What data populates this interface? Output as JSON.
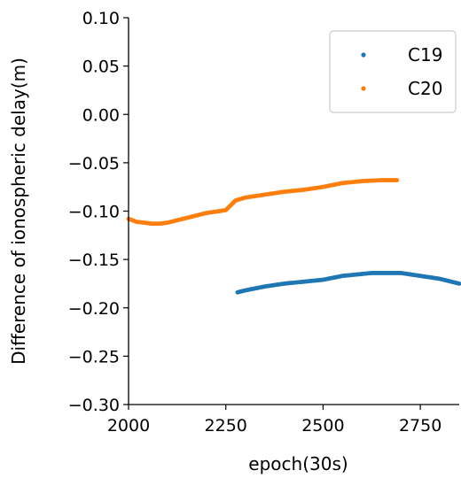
{
  "chart_data": {
    "type": "scatter",
    "xlabel": "epoch(30s)",
    "ylabel": "Difference of ionospheric delay(m)",
    "xlim": [
      2000,
      2850
    ],
    "ylim": [
      -0.3,
      0.1
    ],
    "xticks": [
      2000,
      2250,
      2500,
      2750
    ],
    "xtick_labels": [
      "2000",
      "2250",
      "2500",
      "2750"
    ],
    "yticks": [
      0.1,
      0.05,
      0.0,
      -0.05,
      -0.1,
      -0.15,
      -0.2,
      -0.25,
      -0.3
    ],
    "ytick_labels": [
      "0.10",
      "0.05",
      "0.00",
      "−0.05",
      "−0.10",
      "−0.15",
      "−0.20",
      "−0.25",
      "−0.30"
    ],
    "grid": false,
    "legend_position": "top-right",
    "series": [
      {
        "name": "C19",
        "color": "#1f77b4",
        "x": [
          2280,
          2300,
          2350,
          2400,
          2450,
          2500,
          2550,
          2600,
          2625,
          2650,
          2700,
          2750,
          2800,
          2850
        ],
        "y": [
          -0.184,
          -0.182,
          -0.178,
          -0.175,
          -0.173,
          -0.171,
          -0.167,
          -0.165,
          -0.164,
          -0.164,
          -0.164,
          -0.167,
          -0.17,
          -0.175
        ]
      },
      {
        "name": "C20",
        "color": "#ff7f0e",
        "x": [
          2000,
          2020,
          2040,
          2060,
          2080,
          2100,
          2150,
          2200,
          2250,
          2260,
          2275,
          2300,
          2350,
          2400,
          2450,
          2500,
          2550,
          2600,
          2650,
          2690
        ],
        "y": [
          -0.108,
          -0.111,
          -0.112,
          -0.113,
          -0.113,
          -0.112,
          -0.107,
          -0.102,
          -0.099,
          -0.095,
          -0.089,
          -0.086,
          -0.083,
          -0.08,
          -0.078,
          -0.075,
          -0.071,
          -0.069,
          -0.068,
          -0.068
        ]
      }
    ]
  }
}
